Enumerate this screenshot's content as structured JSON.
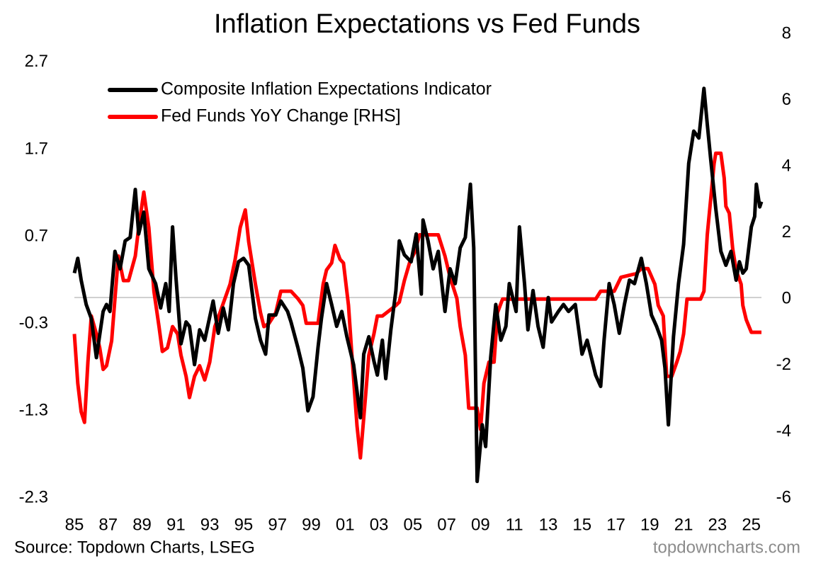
{
  "chart_data": {
    "type": "line",
    "title": "Inflation Expectations vs Fed Funds",
    "source": "Source: Topdown Charts, LSEG",
    "watermark": "topdowncharts.com",
    "legend": "upper left",
    "xlim": [
      1985,
      2025.6
    ],
    "xticks": [
      {
        "value": 1985,
        "label": "85"
      },
      {
        "value": 1987,
        "label": "87"
      },
      {
        "value": 1989,
        "label": "89"
      },
      {
        "value": 1991,
        "label": "91"
      },
      {
        "value": 1993,
        "label": "93"
      },
      {
        "value": 1995,
        "label": "95"
      },
      {
        "value": 1997,
        "label": "97"
      },
      {
        "value": 1999,
        "label": "99"
      },
      {
        "value": 2001,
        "label": "01"
      },
      {
        "value": 2003,
        "label": "03"
      },
      {
        "value": 2005,
        "label": "05"
      },
      {
        "value": 2007,
        "label": "07"
      },
      {
        "value": 2009,
        "label": "09"
      },
      {
        "value": 2011,
        "label": "11"
      },
      {
        "value": 2013,
        "label": "13"
      },
      {
        "value": 2015,
        "label": "15"
      },
      {
        "value": 2017,
        "label": "17"
      },
      {
        "value": 2019,
        "label": "19"
      },
      {
        "value": 2021,
        "label": "21"
      },
      {
        "value": 2023,
        "label": "23"
      },
      {
        "value": 2025,
        "label": "25"
      }
    ],
    "ylim": [
      -2.3,
      3.0
    ],
    "yticks": [
      -2.3,
      -1.3,
      -0.3,
      0.7,
      1.7,
      2.7
    ],
    "y2lim": [
      -6,
      8
    ],
    "y2ticks": [
      -6,
      -4,
      -2,
      0,
      2,
      4,
      6,
      8
    ],
    "series": [
      {
        "name": "Composite Inflation Expectations Indicator",
        "color": "#000000",
        "axis": "y",
        "x": [
          1985.0,
          1985.2,
          1985.4,
          1985.7,
          1986.0,
          1986.3,
          1986.7,
          1986.9,
          1987.1,
          1987.4,
          1987.7,
          1988.0,
          1988.3,
          1988.6,
          1988.8,
          1989.1,
          1989.4,
          1989.8,
          1990.1,
          1990.4,
          1990.6,
          1990.8,
          1991.0,
          1991.3,
          1991.6,
          1991.8,
          1992.1,
          1992.4,
          1992.7,
          1993.2,
          1993.5,
          1993.8,
          1994.1,
          1994.4,
          1994.7,
          1995.0,
          1995.3,
          1995.7,
          1996.0,
          1996.3,
          1996.5,
          1996.9,
          1997.2,
          1997.6,
          1997.8,
          1998.2,
          1998.5,
          1998.8,
          1999.1,
          1999.4,
          1999.6,
          1999.9,
          2000.2,
          2000.5,
          2000.8,
          2001.1,
          2001.5,
          2001.9,
          2002.1,
          2002.4,
          2002.7,
          2002.9,
          2003.2,
          2003.4,
          2003.7,
          2004.0,
          2004.2,
          2004.5,
          2004.9,
          2005.2,
          2005.5,
          2005.6,
          2005.9,
          2006.2,
          2006.5,
          2006.9,
          2007.2,
          2007.5,
          2007.8,
          2008.1,
          2008.4,
          2008.6,
          2008.8,
          2009.1,
          2009.3,
          2009.6,
          2009.9,
          2010.2,
          2010.5,
          2010.7,
          2011.1,
          2011.3,
          2011.6,
          2011.8,
          2012.1,
          2012.4,
          2012.7,
          2013.0,
          2013.2,
          2013.6,
          2013.9,
          2014.2,
          2014.6,
          2015.0,
          2015.3,
          2015.8,
          2016.1,
          2016.3,
          2016.6,
          2016.9,
          2017.2,
          2017.5,
          2017.8,
          2018.1,
          2018.5,
          2018.8,
          2019.1,
          2019.4,
          2019.7,
          2019.9,
          2020.1,
          2020.4,
          2020.7,
          2021.0,
          2021.3,
          2021.6,
          2021.9,
          2022.2,
          2022.4,
          2022.6,
          2022.9,
          2023.2,
          2023.5,
          2023.8,
          2024.1,
          2024.3,
          2024.5,
          2024.7,
          2025.0,
          2025.2,
          2025.3,
          2025.5,
          2025.6
        ],
        "values": [
          0.28,
          0.45,
          0.2,
          -0.08,
          -0.24,
          -0.69,
          -0.16,
          -0.08,
          -0.16,
          0.53,
          0.33,
          0.65,
          0.69,
          1.24,
          0.73,
          0.98,
          0.33,
          0.16,
          -0.12,
          0.16,
          -0.16,
          0.81,
          0.24,
          -0.53,
          -0.28,
          -0.33,
          -0.77,
          -0.37,
          -0.49,
          -0.04,
          -0.41,
          -0.12,
          -0.37,
          0.16,
          0.41,
          0.45,
          0.37,
          -0.24,
          -0.49,
          -0.65,
          -0.2,
          -0.2,
          -0.04,
          -0.16,
          -0.28,
          -0.57,
          -0.81,
          -1.3,
          -1.14,
          -0.57,
          -0.24,
          0.16,
          -0.08,
          -0.33,
          -0.16,
          -0.45,
          -0.77,
          -1.38,
          -0.65,
          -0.45,
          -0.73,
          -0.89,
          -0.49,
          -0.93,
          -0.37,
          0.08,
          0.65,
          0.49,
          0.41,
          0.73,
          0.04,
          0.89,
          0.65,
          0.33,
          0.53,
          -0.16,
          0.33,
          0.16,
          0.57,
          0.69,
          1.3,
          0.57,
          -2.11,
          -1.46,
          -1.71,
          -0.69,
          -0.08,
          -0.49,
          -0.33,
          0.16,
          -0.16,
          0.81,
          0.16,
          -0.37,
          0.08,
          -0.33,
          -0.57,
          0,
          -0.28,
          -0.16,
          -0.08,
          -0.16,
          -0.08,
          -0.65,
          -0.49,
          -0.89,
          -1.02,
          -0.49,
          0.16,
          -0.08,
          -0.41,
          -0.08,
          0.2,
          0.16,
          0.45,
          0.16,
          -0.2,
          -0.33,
          -0.49,
          -0.81,
          -1.46,
          -0.45,
          0.16,
          0.61,
          1.54,
          1.91,
          1.83,
          2.4,
          1.99,
          1.59,
          1.02,
          0.53,
          0.37,
          0.53,
          0.2,
          0.41,
          0.28,
          0.33,
          0.81,
          0.93,
          1.3,
          1.04,
          1.1
        ]
      },
      {
        "name": "Fed Funds YoY Change [RHS]",
        "color": "#ff0000",
        "axis": "y2",
        "x": [
          1985.0,
          1985.2,
          1985.4,
          1985.6,
          1985.8,
          1986.0,
          1986.3,
          1986.5,
          1986.7,
          1986.9,
          1987.2,
          1987.4,
          1987.6,
          1987.9,
          1988.2,
          1988.6,
          1988.8,
          1989.1,
          1989.4,
          1989.7,
          1990.0,
          1990.2,
          1990.5,
          1990.8,
          1991.1,
          1991.3,
          1991.6,
          1991.8,
          1992.1,
          1992.4,
          1992.7,
          1993.0,
          1993.3,
          1993.6,
          1993.9,
          1994.2,
          1994.5,
          1994.8,
          1995.1,
          1995.3,
          1995.7,
          1996.0,
          1996.2,
          1996.5,
          1996.9,
          1997.2,
          1997.8,
          1998.2,
          1998.5,
          1998.7,
          1999.4,
          1999.7,
          1999.9,
          2000.2,
          2000.4,
          2000.7,
          2000.9,
          2001.2,
          2001.4,
          2001.7,
          2001.9,
          2002.2,
          2002.4,
          2002.7,
          2002.9,
          2003.2,
          2004.0,
          2004.2,
          2004.5,
          2004.8,
          2005.1,
          2005.4,
          2006.5,
          2006.9,
          2007.2,
          2007.6,
          2007.8,
          2008.1,
          2008.3,
          2008.8,
          2009.0,
          2009.2,
          2009.5,
          2009.8,
          2010.0,
          2010.3,
          2015.8,
          2016.1,
          2016.9,
          2017.3,
          2018.2,
          2018.5,
          2018.9,
          2019.3,
          2019.5,
          2019.8,
          2020.0,
          2020.3,
          2020.6,
          2020.8,
          2021.0,
          2021.2,
          2022.0,
          2022.2,
          2022.4,
          2022.8,
          2022.9,
          2023.2,
          2023.4,
          2023.5,
          2023.7,
          2023.9,
          2024.1,
          2024.4,
          2024.5,
          2024.7,
          2025.0,
          2025.6
        ],
        "values": [
          -1.05,
          -2.54,
          -3.4,
          -3.72,
          -1.9,
          -0.51,
          -1.05,
          -1.47,
          -2.12,
          -2.01,
          -1.26,
          0.02,
          1.3,
          0.56,
          0.56,
          1.3,
          2.16,
          3.23,
          2.16,
          0.24,
          -0.83,
          -1.58,
          -1.47,
          -0.83,
          -1.05,
          -1.69,
          -2.33,
          -2.97,
          -2.33,
          -2.01,
          -2.44,
          -1.9,
          -0.83,
          -0.41,
          0.02,
          0.45,
          1.2,
          2.16,
          2.69,
          1.73,
          0.45,
          -0.41,
          -0.83,
          -0.73,
          -0.41,
          0.24,
          0.24,
          0.02,
          -0.19,
          -0.73,
          -0.73,
          0.45,
          0.88,
          1.09,
          1.62,
          1.2,
          1.09,
          -0.19,
          -1.69,
          -3.82,
          -4.79,
          -2.97,
          -1.69,
          -1.05,
          -0.51,
          -0.51,
          -0.19,
          -0.09,
          0.56,
          1.09,
          1.41,
          1.94,
          1.94,
          1.3,
          0.66,
          0.02,
          -0.83,
          -1.69,
          -3.29,
          -3.29,
          -3.93,
          -2.54,
          -1.9,
          -1.9,
          -0.41,
          0,
          0,
          0.24,
          0.24,
          0.66,
          0.77,
          0.92,
          0.92,
          0.45,
          -0.19,
          -0.51,
          -2.33,
          -2.33,
          -1.9,
          -1.58,
          -1.05,
          0,
          0,
          0.24,
          1.94,
          4.08,
          4.4,
          4.4,
          3.65,
          2.8,
          2.59,
          1.52,
          0.88,
          0.45,
          -0.19,
          -0.62,
          -1.0,
          -1.0
        ]
      }
    ]
  }
}
